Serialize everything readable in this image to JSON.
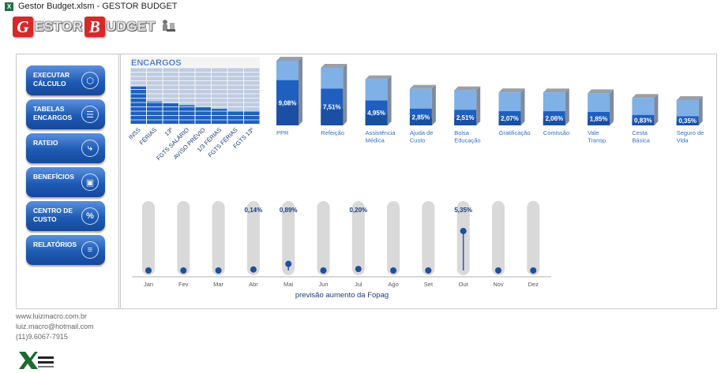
{
  "window": {
    "title": "Gestor Budget.xlsm - GESTOR BUDGET"
  },
  "brand": {
    "letter1": "G",
    "word1": "ESTOR",
    "letter2": "B",
    "word2": "UDGET"
  },
  "nav": [
    {
      "label": "EXECUTAR CÁLCULO",
      "icon": "cubes-icon",
      "glyph": "⬡"
    },
    {
      "label": "TABELAS ENCARGOS",
      "icon": "clipboard-icon",
      "glyph": "☰"
    },
    {
      "label": "RATEIO",
      "icon": "share-icon",
      "glyph": "⤷"
    },
    {
      "label": "BENEFÍCIOS",
      "icon": "gift-icon",
      "glyph": "▣"
    },
    {
      "label": "CENTRO DE CUSTO",
      "icon": "money-bag-icon",
      "glyph": "%"
    },
    {
      "label": "RELATÓRIOS",
      "icon": "scroll-icon",
      "glyph": "≡"
    }
  ],
  "colors": {
    "accent": "#1f5fbf",
    "bar_light": "#bfcbe0",
    "track": "#d9d9d9",
    "dark": "#1f3c7a"
  },
  "chart_data": [
    {
      "type": "bar",
      "title": "ENCARGOS",
      "categories": [
        "INSS",
        "FÉRIAS",
        "13º",
        "FGTS SALÁRIO",
        "AVISO PRÉVIO",
        "1/3 FÉRIAS",
        "FGTS FÉRIAS",
        "FGTS 13º"
      ],
      "values": [
        20,
        12,
        11,
        10,
        9,
        8,
        7,
        7
      ],
      "ylim": [
        0,
        36
      ]
    },
    {
      "type": "bar",
      "categories": [
        "PPR",
        "Refeição",
        "Assistência Médica",
        "Ajuda de Custo",
        "Bolsa Educação",
        "Gratificação",
        "Comissão",
        "Vale Transp.",
        "Cesta Básica",
        "Seguro de Vida"
      ],
      "values": [
        9.08,
        7.51,
        4.95,
        2.85,
        2.51,
        2.07,
        2.06,
        1.85,
        0.83,
        0.35
      ],
      "labels": [
        "9,08%",
        "7,51%",
        "4,95%",
        "2,85%",
        "2,51%",
        "2,07%",
        "2,06%",
        "1,85%",
        "0,83%",
        "0,35%"
      ]
    },
    {
      "type": "scatter",
      "title": "previsão aumento da Fopag",
      "categories": [
        "Jan",
        "Fev",
        "Mar",
        "Abr",
        "Mai",
        "Jun",
        "Jul",
        "Ago",
        "Set",
        "Out",
        "Nov",
        "Dez"
      ],
      "values": [
        0,
        0,
        0,
        0.14,
        0.89,
        0,
        0.2,
        0,
        0,
        5.35,
        0,
        0
      ],
      "labels": [
        "",
        "",
        "",
        "0,14%",
        "0,89%",
        "",
        "0,20%",
        "",
        "",
        "5,35%",
        "",
        ""
      ]
    }
  ],
  "footer": {
    "site": "www.luizmacro.com.br",
    "email": "luiz.macro@hotmail.com",
    "phone": "(11)9.6067-7915"
  }
}
